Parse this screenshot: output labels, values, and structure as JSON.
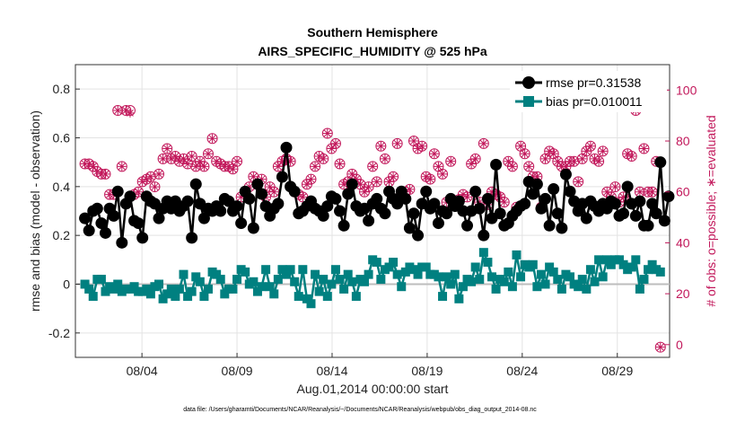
{
  "chart_data": {
    "type": "line",
    "title": "Southern Hemisphere",
    "subtitle": "AIRS_SPECIFIC_HUMIDITY @ 525 hPa",
    "xlabel": "Aug.01,2014 00:00:00 start",
    "ylabel": "rmse and bias (model - observation)",
    "ylabel_right": "# of obs: o=possible; ∗=evaluated",
    "footnote": "data file: /Users/gharamti/Documents/NCAR/Reanalysis/~/Documents/NCAR/Reanalysis/webpub/obs_diag_output_2014-08.nc",
    "xlim": [
      0.5,
      31.75
    ],
    "ylim": [
      -0.3,
      0.9
    ],
    "ylim_right": [
      -5,
      110
    ],
    "x_tick_values": [
      4,
      9,
      14,
      19,
      24,
      29
    ],
    "x_tick_labels": [
      "08/04",
      "08/09",
      "08/14",
      "08/19",
      "08/24",
      "08/29"
    ],
    "y_tick_values": [
      -0.2,
      0,
      0.2,
      0.4,
      0.6,
      0.8
    ],
    "y_tick_labels": [
      "-0.2",
      "0",
      "0.2",
      "0.4",
      "0.6",
      "0.8"
    ],
    "y_right_tick_values": [
      0,
      20,
      40,
      60,
      80,
      100
    ],
    "y_right_tick_labels": [
      "0",
      "20",
      "40",
      "60",
      "80",
      "100"
    ],
    "legend_position": "top-right",
    "grid": true,
    "colors": {
      "rmse": "#000000",
      "bias": "#008080",
      "obs": "#c2185b",
      "zero_line": "#bdbdbd"
    },
    "series": [
      {
        "name": "rmse pr=0.31538",
        "values": [
          0.27,
          0.22,
          0.3,
          0.31,
          0.25,
          0.21,
          0.31,
          0.28,
          0.38,
          0.17,
          0.33,
          0.36,
          0.26,
          0.25,
          0.19,
          0.36,
          0.34,
          0.33,
          0.27,
          0.31,
          0.34,
          0.31,
          0.34,
          0.3,
          0.32,
          0.34,
          0.19,
          0.41,
          0.33,
          0.27,
          0.31,
          0.3,
          0.32,
          0.3,
          0.35,
          0.34,
          0.3,
          0.32,
          0.25,
          0.38,
          0.35,
          0.23,
          0.41,
          0.37,
          0.32,
          0.28,
          0.31,
          0.33,
          0.44,
          0.56,
          0.4,
          0.38,
          0.29,
          0.3,
          0.32,
          0.34,
          0.31,
          0.3,
          0.28,
          0.32,
          0.36,
          0.35,
          0.3,
          0.24,
          0.37,
          0.41,
          0.32,
          0.3,
          0.31,
          0.26,
          0.33,
          0.35,
          0.31,
          0.29,
          0.38,
          0.35,
          0.33,
          0.38,
          0.35,
          0.23,
          0.29,
          0.2,
          0.33,
          0.38,
          0.31,
          0.33,
          0.25,
          0.3,
          0.29,
          0.35,
          0.32,
          0.34,
          0.3,
          0.24,
          0.3,
          0.38,
          0.31,
          0.2,
          0.35,
          0.27,
          0.49,
          0.29,
          0.24,
          0.25,
          0.28,
          0.3,
          0.32,
          0.33,
          0.42,
          0.37,
          0.41,
          0.31,
          0.35,
          0.24,
          0.39,
          0.29,
          0.23,
          0.45,
          0.38,
          0.34,
          0.3,
          0.33,
          0.27,
          0.34,
          0.32,
          0.3,
          0.33,
          0.31,
          0.34,
          0.33,
          0.28,
          0.29,
          0.4,
          0.33,
          0.28,
          0.34,
          0.24,
          0.24,
          0.33,
          0.29,
          0.5,
          0.26,
          0.36
        ]
      },
      {
        "name": "bias pr=0.010011",
        "values": [
          0.0,
          -0.02,
          -0.05,
          0.02,
          0.02,
          -0.03,
          -0.01,
          -0.02,
          0.0,
          -0.03,
          -0.02,
          -0.02,
          -0.01,
          -0.03,
          -0.03,
          -0.02,
          -0.04,
          -0.01,
          0.0,
          -0.06,
          -0.04,
          -0.02,
          -0.05,
          -0.02,
          0.04,
          -0.05,
          -0.03,
          0.03,
          0.01,
          -0.05,
          -0.02,
          0.05,
          0.04,
          0.02,
          -0.04,
          -0.02,
          -0.02,
          0.02,
          0.06,
          0.05,
          0.0,
          0.01,
          -0.03,
          -0.01,
          0.06,
          -0.01,
          -0.04,
          0.02,
          0.06,
          0.04,
          0.06,
          0.01,
          -0.05,
          0.06,
          -0.06,
          -0.08,
          0.04,
          -0.03,
          0.02,
          -0.05,
          0.0,
          0.06,
          0.02,
          -0.02,
          0.04,
          0.01,
          -0.05,
          0.02,
          0.01,
          0.04,
          0.1,
          0.09,
          0.02,
          0.06,
          0.07,
          0.09,
          0.04,
          -0.01,
          0.05,
          0.07,
          0.06,
          0.04,
          0.07,
          0.07,
          0.04,
          0.04,
          0.03,
          -0.05,
          0.03,
          0.0,
          0.04,
          -0.06,
          -0.01,
          0.02,
          0.01,
          0.07,
          0.02,
          0.13,
          0.09,
          0.03,
          -0.02,
          0.02,
          0.01,
          0.05,
          -0.01,
          0.12,
          0.03,
          0.08,
          0.07,
          0.08,
          -0.01,
          0.04,
          0.0,
          0.07,
          0.05,
          0.02,
          -0.02,
          0.04,
          0.03,
          0.0,
          -0.01,
          0.02,
          -0.02,
          0.06,
          0.01,
          0.1,
          0.03,
          0.1,
          0.08,
          0.1,
          0.1,
          0.08,
          0.06,
          0.07,
          0.1,
          -0.02,
          0.02,
          0.06,
          0.08,
          0.06,
          0.05
        ]
      },
      {
        "name": "obs possible",
        "values": [
          71,
          71,
          70,
          68,
          67,
          67,
          59,
          59,
          92,
          70,
          92,
          92,
          59,
          60,
          64,
          65,
          66,
          62,
          67,
          73,
          77,
          73,
          74,
          72,
          73,
          71,
          74,
          70,
          72,
          70,
          75,
          81,
          72,
          71,
          70,
          70,
          69,
          72,
          58,
          60,
          62,
          66,
          63,
          65,
          58,
          62,
          60,
          70,
          72,
          73,
          72,
          60,
          59,
          58,
          63,
          65,
          70,
          74,
          73,
          83,
          77,
          79,
          71,
          63,
          64,
          67,
          65,
          63,
          60,
          62,
          70,
          64,
          78,
          73,
          64,
          66,
          79,
          59,
          60,
          61,
          80,
          77,
          78,
          66,
          65,
          75,
          70,
          67,
          56,
          72,
          56,
          57,
          59,
          58,
          71,
          73,
          56,
          79,
          55,
          60,
          59,
          58,
          56,
          72,
          70,
          54,
          78,
          75,
          70,
          66,
          66,
          54,
          73,
          76,
          75,
          72,
          70,
          70,
          72,
          72,
          64,
          73,
          76,
          78,
          73,
          72,
          76,
          60,
          58,
          62,
          56,
          58,
          75,
          74,
          92,
          60,
          77,
          60,
          60,
          72,
          -1
        ]
      },
      {
        "name": "obs evaluated",
        "values": [
          71,
          71,
          70,
          68,
          67,
          67,
          59,
          59,
          92,
          70,
          92,
          91,
          59,
          60,
          64,
          65,
          66,
          62,
          67,
          73,
          77,
          73,
          74,
          72,
          73,
          71,
          74,
          70,
          72,
          70,
          75,
          81,
          72,
          71,
          70,
          70,
          69,
          72,
          58,
          60,
          62,
          66,
          63,
          65,
          58,
          62,
          60,
          70,
          72,
          73,
          72,
          60,
          59,
          58,
          63,
          65,
          70,
          74,
          73,
          83,
          77,
          79,
          71,
          63,
          64,
          67,
          65,
          63,
          60,
          62,
          70,
          64,
          78,
          73,
          64,
          66,
          79,
          59,
          60,
          61,
          80,
          77,
          78,
          66,
          65,
          75,
          70,
          67,
          56,
          72,
          56,
          57,
          59,
          58,
          71,
          73,
          56,
          79,
          55,
          60,
          59,
          58,
          56,
          72,
          70,
          54,
          78,
          75,
          70,
          66,
          66,
          54,
          73,
          76,
          75,
          72,
          70,
          70,
          72,
          72,
          64,
          73,
          76,
          78,
          73,
          72,
          76,
          60,
          58,
          62,
          56,
          58,
          75,
          74,
          92,
          60,
          77,
          60,
          60,
          72,
          -1
        ]
      }
    ]
  }
}
